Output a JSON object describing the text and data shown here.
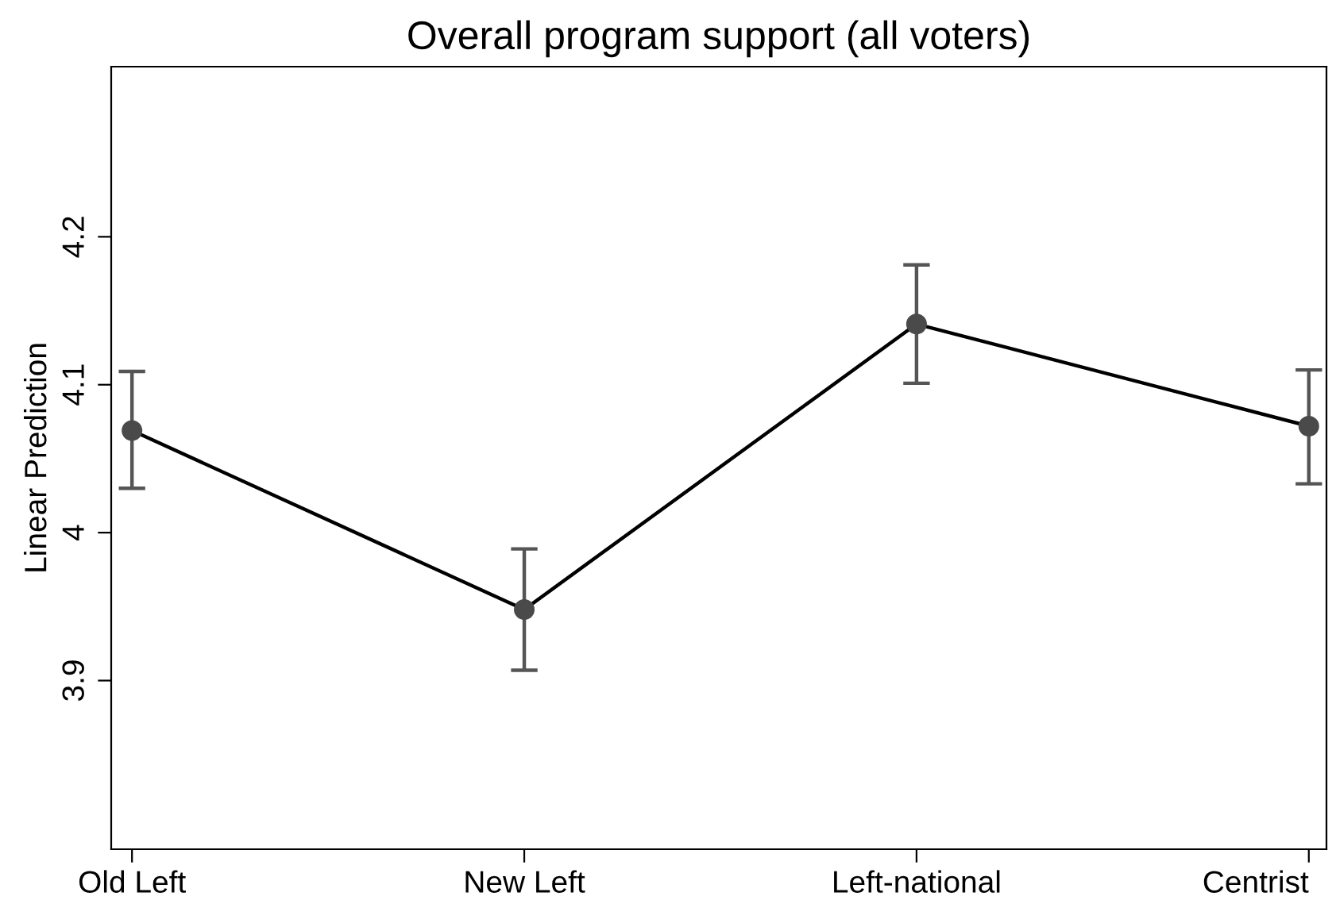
{
  "chart_data": {
    "type": "line",
    "title": "Overall program support (all voters)",
    "ylabel": "Linear Prediction",
    "categories": [
      "Old Left",
      "New Left",
      "Left-national",
      "Centrist"
    ],
    "series": [
      {
        "color": "#000000",
        "values": [
          4.069,
          3.948,
          4.141,
          4.072
        ],
        "errors": [
          [
            4.03,
            4.109
          ],
          [
            3.907,
            3.989
          ],
          [
            4.101,
            4.181
          ],
          [
            4.033,
            4.11
          ]
        ]
      }
    ],
    "ylim": [
      3.786,
      4.315
    ],
    "yticks": [
      3.9,
      4,
      4.1,
      4.2
    ],
    "marker": "circle",
    "grid": false,
    "legend": false
  }
}
